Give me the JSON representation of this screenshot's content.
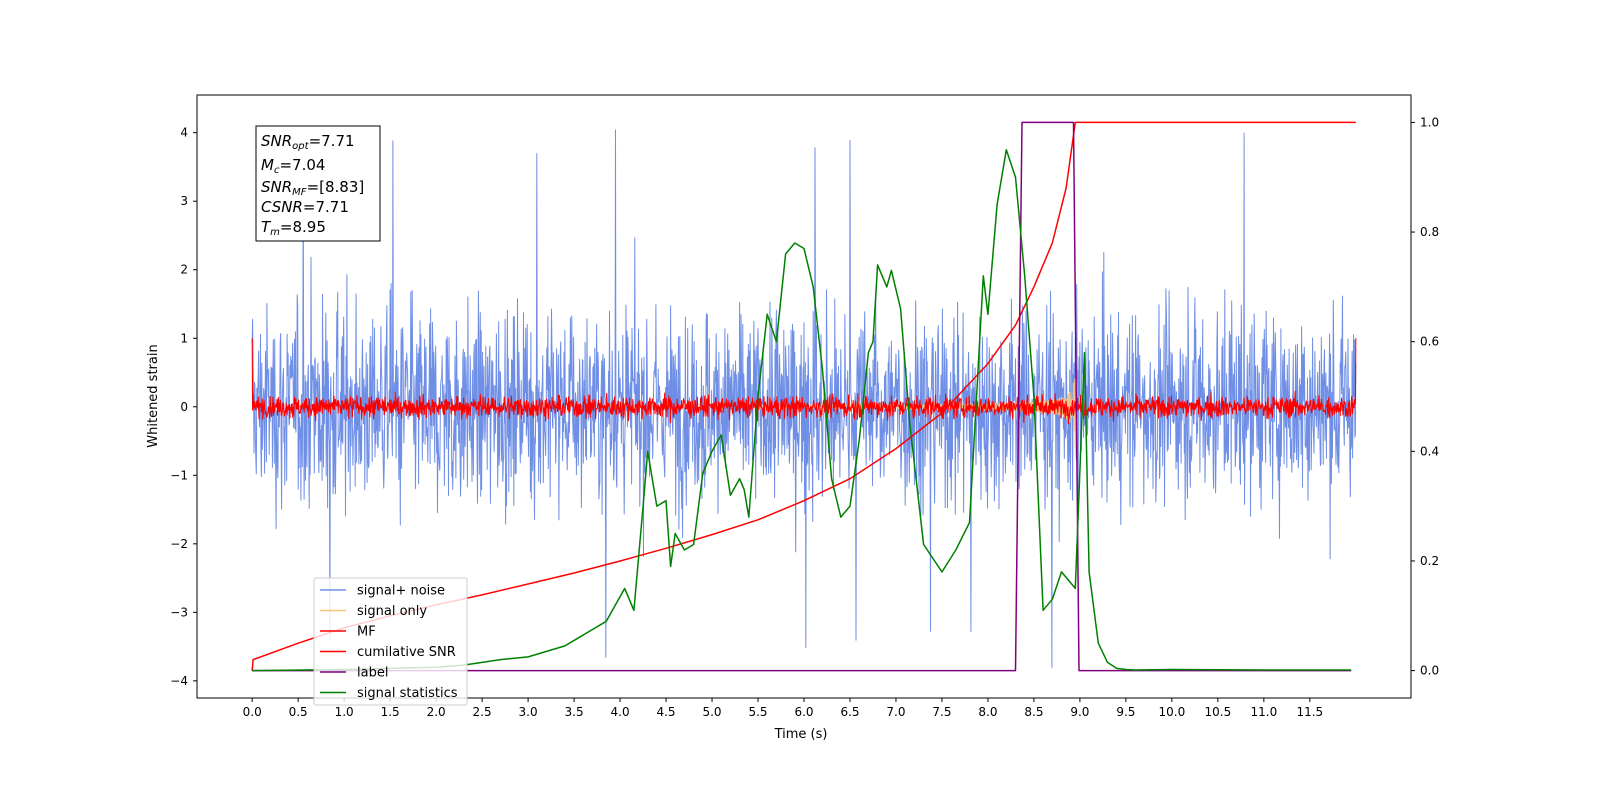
{
  "chart_data": {
    "type": "line",
    "xlabel": "Time (s)",
    "ylabel": "Whitened strain",
    "xlim": [
      -0.6,
      12.6
    ],
    "ylim": [
      -4.25,
      4.55
    ],
    "y2lim": [
      -0.05,
      1.05
    ],
    "xticks": [
      "0.0",
      "0.5",
      "1.0",
      "1.5",
      "2.0",
      "2.5",
      "3.0",
      "3.5",
      "4.0",
      "4.5",
      "5.0",
      "5.5",
      "6.0",
      "6.5",
      "7.0",
      "7.5",
      "8.0",
      "8.5",
      "9.0",
      "9.5",
      "10.0",
      "10.5",
      "11.0",
      "11.5"
    ],
    "yticks": [
      "4",
      "3",
      "2",
      "1",
      "0",
      "−1",
      "−2",
      "−3",
      "−4"
    ],
    "y2ticks": [
      "1.0",
      "0.8",
      "0.6",
      "0.4",
      "0.2",
      "0.0"
    ],
    "grid": false,
    "legend_position": "lower-left",
    "annotation": {
      "snr_opt": {
        "base": "SNR",
        "sub": "opt",
        "value": "=7.71"
      },
      "mc": {
        "base": "M",
        "sub": "c",
        "value": "=7.04"
      },
      "snr_mf": {
        "base": "SNR",
        "sub": "MF",
        "value": "=[8.83]"
      },
      "csnr": {
        "base": "CSNR",
        "value": "=7.71"
      },
      "tm": {
        "base": "T",
        "sub": "m",
        "value": "=8.95"
      }
    },
    "series": [
      {
        "name": "signal+ noise",
        "color": "#6f8fe6",
        "axis": "left",
        "kind": "noise",
        "x_range": [
          0,
          12
        ],
        "typical_amplitude": 1.8,
        "peak_values": [
          4.05,
          -3.85
        ]
      },
      {
        "name": "signal only",
        "color": "#f5c77e",
        "axis": "left",
        "kind": "chirp",
        "x_range": [
          5.5,
          8.95
        ],
        "peak_amplitude": 0.85
      },
      {
        "name": "MF",
        "color": "#ff0000",
        "axis": "left",
        "kind": "noise",
        "x_range": [
          0,
          12
        ],
        "typical_amplitude": 0.2
      },
      {
        "name": "cumilative SNR",
        "color": "#ff0000",
        "axis": "right",
        "x": [
          0.0,
          0.01,
          0.5,
          1.0,
          1.5,
          2.0,
          2.5,
          3.0,
          3.5,
          4.0,
          4.5,
          5.0,
          5.5,
          6.0,
          6.5,
          7.0,
          7.5,
          8.0,
          8.3,
          8.5,
          8.7,
          8.85,
          8.95,
          12.0
        ],
        "values": [
          0.0,
          0.02,
          0.05,
          0.078,
          0.1,
          0.12,
          0.138,
          0.158,
          0.178,
          0.2,
          0.223,
          0.248,
          0.275,
          0.31,
          0.35,
          0.405,
          0.47,
          0.56,
          0.63,
          0.7,
          0.78,
          0.88,
          1.0,
          1.0
        ]
      },
      {
        "name": "label",
        "color": "#800080",
        "axis": "right",
        "x": [
          0.0,
          8.3,
          8.37,
          8.93,
          8.99,
          11.95
        ],
        "values": [
          0.0,
          0.0,
          1.0,
          1.0,
          0.0,
          0.0
        ]
      },
      {
        "name": "signal statistics",
        "color": "#008000",
        "axis": "right",
        "x": [
          0.0,
          1.0,
          2.0,
          2.3,
          2.5,
          2.7,
          3.0,
          3.2,
          3.4,
          3.55,
          3.7,
          3.85,
          3.95,
          4.05,
          4.15,
          4.25,
          4.3,
          4.4,
          4.5,
          4.55,
          4.6,
          4.7,
          4.8,
          4.9,
          5.0,
          5.1,
          5.2,
          5.3,
          5.35,
          5.4,
          5.5,
          5.6,
          5.7,
          5.8,
          5.9,
          6.0,
          6.1,
          6.2,
          6.3,
          6.4,
          6.5,
          6.6,
          6.7,
          6.75,
          6.8,
          6.9,
          6.95,
          7.05,
          7.15,
          7.3,
          7.5,
          7.65,
          7.8,
          7.95,
          8.0,
          8.1,
          8.2,
          8.3,
          8.4,
          8.5,
          8.6,
          8.7,
          8.8,
          8.9,
          8.95,
          9.05,
          9.1,
          9.2,
          9.3,
          9.4,
          9.5,
          9.6,
          10.0,
          11.0,
          11.95
        ],
        "values": [
          0.0,
          0.002,
          0.006,
          0.01,
          0.015,
          0.02,
          0.025,
          0.035,
          0.045,
          0.06,
          0.075,
          0.09,
          0.12,
          0.15,
          0.11,
          0.3,
          0.4,
          0.3,
          0.31,
          0.19,
          0.25,
          0.22,
          0.23,
          0.36,
          0.4,
          0.43,
          0.32,
          0.35,
          0.33,
          0.28,
          0.5,
          0.65,
          0.6,
          0.76,
          0.78,
          0.77,
          0.7,
          0.55,
          0.35,
          0.28,
          0.3,
          0.42,
          0.58,
          0.6,
          0.74,
          0.7,
          0.73,
          0.66,
          0.45,
          0.23,
          0.18,
          0.22,
          0.27,
          0.72,
          0.65,
          0.85,
          0.95,
          0.9,
          0.72,
          0.5,
          0.11,
          0.13,
          0.18,
          0.16,
          0.15,
          0.58,
          0.18,
          0.05,
          0.015,
          0.004,
          0.002,
          0.001,
          0.002,
          0.001,
          0.001
        ]
      }
    ]
  }
}
